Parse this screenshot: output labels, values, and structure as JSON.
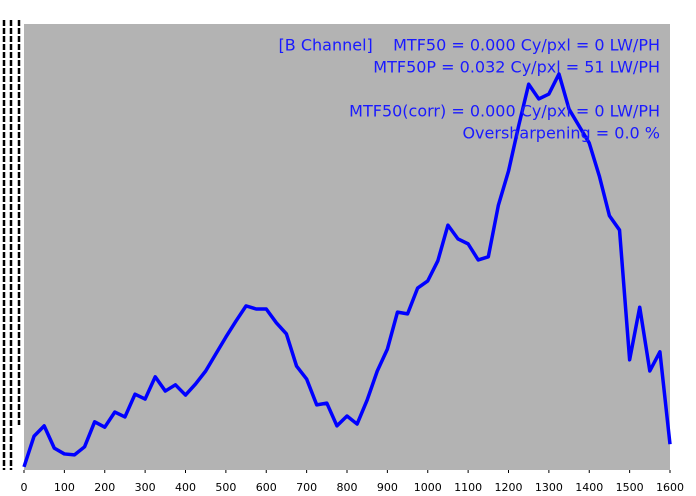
{
  "chart_data": {
    "type": "line",
    "annotations": [
      "[B Channel]    MTF50 = 0.000 Cy/pxl = 0 LW/PH",
      "MTF50P = 0.032 Cy/pxl = 51 LW/PH",
      "MTF50(corr) = 0.000 Cy/pxl = 0 LW/PH",
      "Oversharpening = 0.0 %"
    ],
    "x": [
      0,
      25,
      50,
      75,
      100,
      125,
      150,
      175,
      200,
      225,
      250,
      275,
      300,
      325,
      350,
      375,
      400,
      425,
      450,
      475,
      500,
      525,
      550,
      575,
      600,
      625,
      650,
      675,
      700,
      725,
      750,
      775,
      800,
      825,
      850,
      875,
      900,
      925,
      950,
      975,
      1000,
      1025,
      1050,
      1075,
      1100,
      1125,
      1150,
      1175,
      1200,
      1225,
      1250,
      1275,
      1300,
      1325,
      1350,
      1375,
      1400,
      1425,
      1450,
      1475,
      1500,
      1525,
      1550,
      1575,
      1600
    ],
    "series": [
      {
        "color": "#0000ff",
        "values": [
          0.007,
          0.076,
          0.099,
          0.049,
          0.036,
          0.034,
          0.052,
          0.108,
          0.096,
          0.13,
          0.119,
          0.17,
          0.159,
          0.209,
          0.177,
          0.191,
          0.168,
          0.193,
          0.222,
          0.26,
          0.298,
          0.334,
          0.368,
          0.361,
          0.361,
          0.33,
          0.305,
          0.233,
          0.204,
          0.146,
          0.15,
          0.099,
          0.121,
          0.103,
          0.157,
          0.222,
          0.271,
          0.354,
          0.35,
          0.408,
          0.424,
          0.469,
          0.549,
          0.518,
          0.507,
          0.471,
          0.478,
          0.594,
          0.67,
          0.771,
          0.865,
          0.832,
          0.843,
          0.888,
          0.809,
          0.771,
          0.733,
          0.659,
          0.57,
          0.538,
          0.247,
          0.365,
          0.222,
          0.265,
          0.058
        ]
      }
    ],
    "xlim": [
      0,
      1600
    ],
    "xticks": [
      0,
      100,
      200,
      300,
      400,
      500,
      600,
      700,
      800,
      900,
      1000,
      1100,
      1200,
      1300,
      1400,
      1500,
      1600
    ],
    "ylim": [
      0,
      1
    ],
    "annotation_color": "#1a1aff",
    "plot_background": "#b3b3b3"
  }
}
